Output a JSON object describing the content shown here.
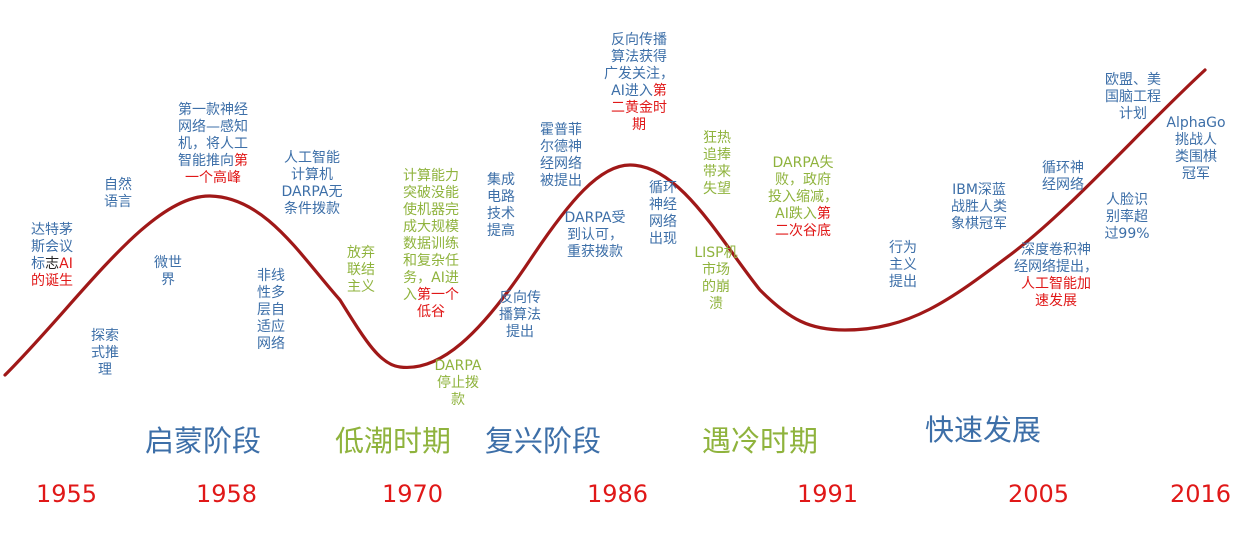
{
  "colors": {
    "curve": "#a01818",
    "blue": "#3d6fa8",
    "green": "#8fb33d",
    "red": "#e01818",
    "black": "#222222",
    "year": "#e01818"
  },
  "annotations": [
    {
      "id": "dartmouth",
      "parts": [
        {
          "t": "达特茅\n斯会议\n标",
          "c": "blue"
        },
        {
          "t": "志",
          "c": "black"
        },
        {
          "t": "AI",
          "c": "red"
        },
        {
          "t": "\n的诞生",
          "c": "red"
        }
      ]
    },
    {
      "id": "exploratory",
      "parts": [
        {
          "t": "探索\n式推\n理",
          "c": "blue"
        }
      ]
    },
    {
      "id": "natural-language",
      "parts": [
        {
          "t": "自然\n语言",
          "c": "blue"
        }
      ]
    },
    {
      "id": "microworld",
      "parts": [
        {
          "t": "微世\n界",
          "c": "blue"
        }
      ]
    },
    {
      "id": "perceptron",
      "parts": [
        {
          "t": "第一款神经\n网络—感知\n机，将人工\n智能推向",
          "c": "blue"
        },
        {
          "t": "第\n一个高峰",
          "c": "red"
        }
      ]
    },
    {
      "id": "darpa-funding",
      "parts": [
        {
          "t": "人工智能\n计算机\nDARPA无\n条件拨款",
          "c": "blue"
        }
      ]
    },
    {
      "id": "nonlinear",
      "parts": [
        {
          "t": "非线\n性多\n层自\n适应\n网络",
          "c": "blue"
        }
      ]
    },
    {
      "id": "abandon-connectionism",
      "parts": [
        {
          "t": "放弃\n联结\n主义",
          "c": "green"
        }
      ]
    },
    {
      "id": "compute-limits",
      "parts": [
        {
          "t": "计算能力\n突破没能\n使机器完\n成大规模\n数据训练\n和复杂任\n务，AI进\n入",
          "c": "green"
        },
        {
          "t": "第一个\n低谷",
          "c": "red"
        }
      ]
    },
    {
      "id": "darpa-stop",
      "parts": [
        {
          "t": "DARPA\n停止拨\n款",
          "c": "green"
        }
      ]
    },
    {
      "id": "integrated-circuits",
      "parts": [
        {
          "t": "集成\n电路\n技术\n提高",
          "c": "blue"
        }
      ]
    },
    {
      "id": "backprop-proposed",
      "parts": [
        {
          "t": "反向传\n播算法\n提出",
          "c": "blue"
        }
      ]
    },
    {
      "id": "hopfield",
      "parts": [
        {
          "t": "霍普菲\n尔德神\n经网络\n被提出",
          "c": "blue"
        }
      ]
    },
    {
      "id": "darpa-recognized",
      "parts": [
        {
          "t": "DARPA受\n到认可，\n重获拨款",
          "c": "blue"
        }
      ]
    },
    {
      "id": "backprop-attention",
      "parts": [
        {
          "t": "反向传播\n算法获得\n广发关注，\nAI进入",
          "c": "blue"
        },
        {
          "t": "第\n二黄金时\n期",
          "c": "red"
        }
      ]
    },
    {
      "id": "rnn",
      "parts": [
        {
          "t": "循环\n神经\n网络\n出现",
          "c": "blue"
        }
      ]
    },
    {
      "id": "frenzy",
      "parts": [
        {
          "t": "狂热\n追捧\n带来\n失望",
          "c": "green"
        }
      ]
    },
    {
      "id": "lisp-crash",
      "parts": [
        {
          "t": "LISP机\n市场\n的崩\n溃",
          "c": "green"
        }
      ]
    },
    {
      "id": "darpa-fail",
      "parts": [
        {
          "t": "DARPA失\n败，政府\n投入缩减，\nAI跌入",
          "c": "green"
        },
        {
          "t": "第\n二次谷底",
          "c": "red"
        }
      ]
    },
    {
      "id": "behaviorism",
      "parts": [
        {
          "t": "行为\n主义\n提出",
          "c": "blue"
        }
      ]
    },
    {
      "id": "deep-blue",
      "parts": [
        {
          "t": "IBM深蓝\n战胜人类\n象棋冠军",
          "c": "blue"
        }
      ]
    },
    {
      "id": "cnn",
      "parts": [
        {
          "t": "深度卷积神\n经网络提出，\n",
          "c": "blue"
        },
        {
          "t": "人工智能加\n速发展",
          "c": "red"
        }
      ]
    },
    {
      "id": "rnn-2",
      "parts": [
        {
          "t": "循环神\n经网络",
          "c": "blue"
        }
      ]
    },
    {
      "id": "face-recognition",
      "parts": [
        {
          "t": "人脸识\n别率超\n过99%",
          "c": "blue"
        }
      ]
    },
    {
      "id": "brain-project",
      "parts": [
        {
          "t": "欧盟、美\n国脑工程\n计划",
          "c": "blue"
        }
      ]
    },
    {
      "id": "alphago",
      "parts": [
        {
          "t": "AlphaGo\n挑战人\n类围棋\n冠军",
          "c": "blue"
        }
      ]
    }
  ],
  "phases": [
    {
      "id": "enlightenment",
      "label": "启蒙阶段",
      "c": "blue"
    },
    {
      "id": "low-tide",
      "label": "低潮时期",
      "c": "green"
    },
    {
      "id": "revival",
      "label": "复兴阶段",
      "c": "blue"
    },
    {
      "id": "cold",
      "label": "遇冷时期",
      "c": "green"
    },
    {
      "id": "rapid",
      "label": "快速发展",
      "c": "blue"
    }
  ],
  "years": [
    "1955",
    "1958",
    "1970",
    "1986",
    "1991",
    "2005",
    "2016"
  ]
}
